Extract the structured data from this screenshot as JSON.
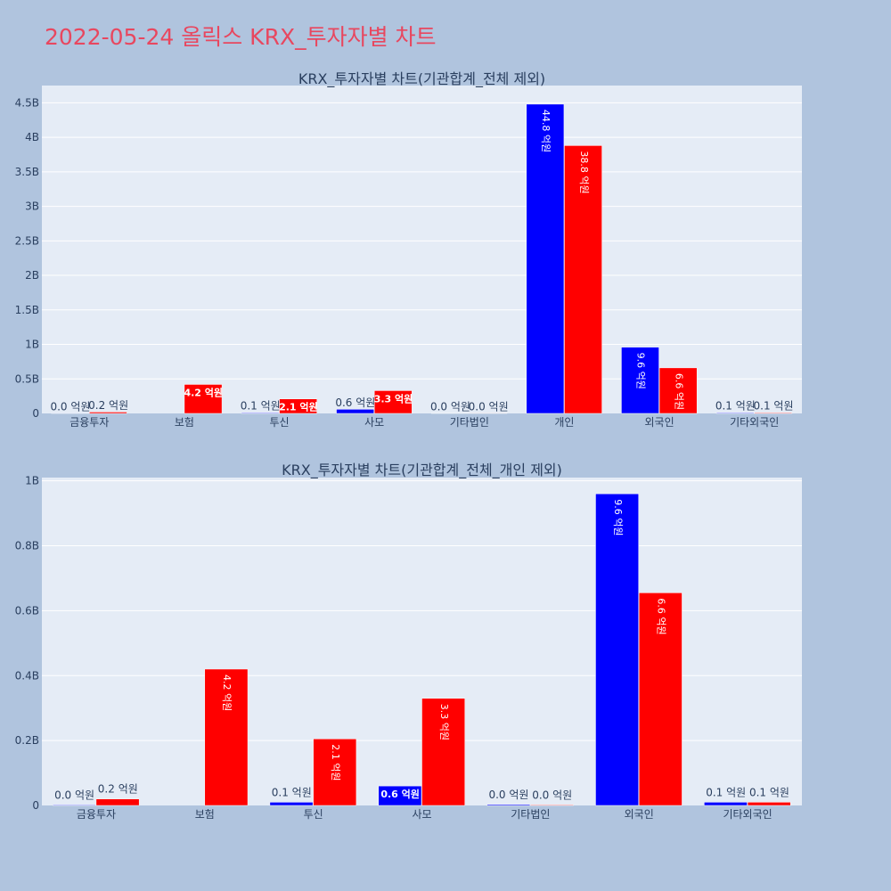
{
  "title": "2022-05-24 올릭스 KRX_투자자별 차트",
  "colors": {
    "series_a": "#0000ff",
    "series_b": "#ff0000",
    "plot_bg": "#e5ecf6",
    "page_bg": "#b0c4de"
  },
  "chart_data": [
    {
      "type": "bar",
      "title": "KRX_투자자별 차트(기관합계_전체 제외)",
      "categories": [
        "금융투자",
        "보험",
        "투신",
        "사모",
        "기타법인",
        "개인",
        "외국인",
        "기타외국인"
      ],
      "series": [
        {
          "values": [
            2000000,
            0,
            10000000,
            60000000,
            3000000,
            4480000000,
            960000000,
            10000000
          ],
          "labels": [
            "0.0 억원",
            "",
            "0.1 억원",
            "0.6 억원",
            "0.0 억원",
            "44.8 억원",
            "9.6 억원",
            "0.1 억원"
          ]
        },
        {
          "values": [
            20000000,
            420000000,
            210000000,
            330000000,
            2000000,
            3880000000,
            660000000,
            10000000
          ],
          "labels": [
            "0.2 억원",
            "4.2 억원",
            "2.1 억원",
            "3.3 억원",
            "0.0 억원",
            "38.8 억원",
            "6.6 억원",
            "0.1 억원"
          ]
        }
      ],
      "yticks": [
        0,
        500000000,
        1000000000,
        1500000000,
        2000000000,
        2500000000,
        3000000000,
        3500000000,
        4000000000,
        4500000000
      ],
      "ytick_labels": [
        "0",
        "0.5B",
        "1B",
        "1.5B",
        "2B",
        "2.5B",
        "3B",
        "3.5B",
        "4B",
        "4.5B"
      ],
      "ylim": [
        0,
        4750000000
      ],
      "grid": true
    },
    {
      "type": "bar",
      "title": "KRX_투자자별 차트(기관합계_전체_개인 제외)",
      "categories": [
        "금융투자",
        "보험",
        "투신",
        "사모",
        "기타법인",
        "외국인",
        "기타외국인"
      ],
      "series": [
        {
          "values": [
            2000000,
            0,
            10000000,
            60000000,
            3000000,
            960000000,
            10000000
          ],
          "labels": [
            "0.0 억원",
            "",
            "0.1 억원",
            "0.6 억원",
            "0.0 억원",
            "9.6 억원",
            "0.1 억원"
          ]
        },
        {
          "values": [
            20000000,
            420000000,
            205000000,
            330000000,
            2000000,
            655000000,
            10000000
          ],
          "labels": [
            "0.2 억원",
            "4.2 억원",
            "2.1 억원",
            "3.3 억원",
            "0.0 억원",
            "6.6 억원",
            "0.1 억원"
          ]
        }
      ],
      "yticks": [
        0,
        200000000,
        400000000,
        600000000,
        800000000,
        1000000000
      ],
      "ytick_labels": [
        "0",
        "0.2B",
        "0.4B",
        "0.6B",
        "0.8B",
        "1B"
      ],
      "ylim": [
        0,
        1010000000
      ],
      "grid": true
    }
  ]
}
